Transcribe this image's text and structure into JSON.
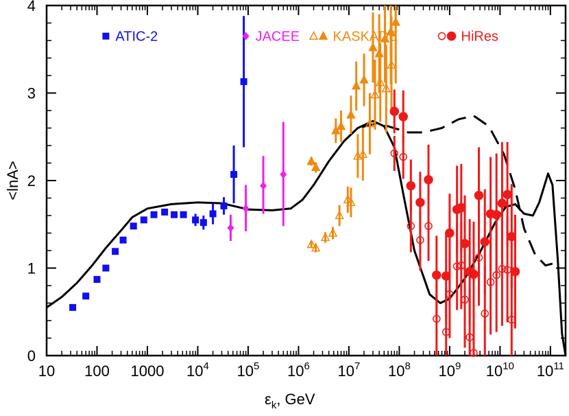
{
  "chart_data": {
    "type": "scatter",
    "x_scale": "log",
    "xlim": [
      10,
      200000000000
    ],
    "ylim": [
      0,
      4
    ],
    "grid": false,
    "xlabel_main": "ε",
    "xlabel_sub": "k",
    "xlabel_rest": ", GeV",
    "ylabel": "<lnA>",
    "x_ticks": [
      {
        "value": 10,
        "base": "10",
        "exp": ""
      },
      {
        "value": 100,
        "base": "100",
        "exp": ""
      },
      {
        "value": 1000,
        "base": "1000",
        "exp": ""
      },
      {
        "value": 10000,
        "base": "10",
        "exp": "4"
      },
      {
        "value": 100000,
        "base": "10",
        "exp": "5"
      },
      {
        "value": 1000000,
        "base": "10",
        "exp": "6"
      },
      {
        "value": 10000000,
        "base": "10",
        "exp": "7"
      },
      {
        "value": 100000000,
        "base": "10",
        "exp": "8"
      },
      {
        "value": 1000000000,
        "base": "10",
        "exp": "9"
      },
      {
        "value": 10000000000,
        "base": "10",
        "exp": "10"
      },
      {
        "value": 100000000000,
        "base": "10",
        "exp": "11"
      }
    ],
    "y_ticks": [
      {
        "value": 0,
        "label": "0"
      },
      {
        "value": 1,
        "label": "1"
      },
      {
        "value": 2,
        "label": "2"
      },
      {
        "value": 3,
        "label": "3"
      },
      {
        "value": 4,
        "label": "4"
      }
    ],
    "legend_placement": "top",
    "series": [
      {
        "name": "ATIC-2",
        "color": "#1010ee",
        "marker": "square-filled",
        "points": [
          [
            33,
            0.55,
            0,
            0
          ],
          [
            60,
            0.68,
            0,
            0
          ],
          [
            100,
            0.87,
            0,
            0
          ],
          [
            150,
            1.0,
            0,
            0
          ],
          [
            230,
            1.19,
            0,
            0
          ],
          [
            330,
            1.32,
            0,
            0
          ],
          [
            530,
            1.48,
            0,
            0
          ],
          [
            850,
            1.55,
            0,
            0
          ],
          [
            1350,
            1.61,
            0,
            0
          ],
          [
            2200,
            1.64,
            0,
            0
          ],
          [
            3400,
            1.61,
            0,
            0
          ],
          [
            5200,
            1.61,
            0,
            0
          ],
          [
            9000,
            1.55,
            0.07,
            0.07
          ],
          [
            13000,
            1.52,
            0.08,
            0.08
          ],
          [
            20000,
            1.62,
            0.12,
            0.12
          ],
          [
            33000,
            1.71,
            0.1,
            0.1
          ],
          [
            52000,
            2.07,
            0.33,
            0.33
          ],
          [
            82000,
            3.13,
            0.75,
            0.75
          ]
        ]
      },
      {
        "name": "JACEE",
        "color": "#ee20ee",
        "marker": "diamond-filled",
        "points": [
          [
            45000,
            1.46,
            0.15,
            0.15
          ],
          [
            90000,
            1.68,
            0.27,
            0.26
          ],
          [
            200000,
            1.94,
            0.34,
            0.32
          ],
          [
            500000,
            2.07,
            0.6,
            0.59
          ]
        ]
      },
      {
        "name": "KASKADE",
        "color": "#ee8a10",
        "marker": "triangle-filled",
        "points": [
          [
            1800000,
            2.22,
            0.05,
            0.05
          ],
          [
            2200000,
            2.15,
            0.06,
            0.06
          ],
          [
            5500000,
            2.57,
            0.14,
            0.14
          ],
          [
            7000000,
            2.62,
            0.18,
            0.18
          ],
          [
            11000000,
            2.75,
            0.22,
            0.22
          ],
          [
            14000000,
            3.08,
            0.28,
            0.28
          ],
          [
            20000000,
            3.15,
            0.3,
            0.3
          ],
          [
            30000000,
            3.52,
            0.4,
            0.4
          ],
          [
            40000000,
            3.45,
            0.45,
            0.45
          ],
          [
            52000000,
            3.62,
            0.5,
            0.5
          ],
          [
            68000000,
            3.7,
            0.6,
            0.6
          ],
          [
            85000000,
            3.81,
            0.7,
            0.7
          ]
        ]
      },
      {
        "name": "KASKADE",
        "color": "#ee8a10",
        "marker": "triangle-open",
        "points": [
          [
            1800000,
            1.27,
            0.04,
            0.04
          ],
          [
            2200000,
            1.23,
            0.05,
            0.05
          ],
          [
            3400000,
            1.35,
            0.06,
            0.06
          ],
          [
            4800000,
            1.4,
            0.07,
            0.07
          ],
          [
            6500000,
            1.6,
            0.12,
            0.12
          ],
          [
            9500000,
            1.78,
            0.15,
            0.15
          ],
          [
            11000000,
            1.75,
            0.17,
            0.17
          ],
          [
            15000000,
            2.28,
            0.25,
            0.25
          ],
          [
            19000000,
            2.3,
            0.3,
            0.3
          ],
          [
            26000000,
            2.65,
            0.35,
            0.35
          ],
          [
            33000000,
            2.98,
            0.4,
            0.4
          ],
          [
            42000000,
            3.12,
            0.45,
            0.45
          ],
          [
            55000000,
            3.05,
            0.5,
            0.5
          ],
          [
            70000000,
            3.32,
            0.55,
            0.55
          ]
        ]
      },
      {
        "name": "HiRes",
        "color": "#ee1a1a",
        "marker": "circle-filled",
        "points": [
          [
            80000000,
            2.79,
            0.25,
            0.25
          ],
          [
            120000000,
            2.73,
            0.3,
            0.3
          ],
          [
            170000000,
            1.94,
            0.3,
            0.3
          ],
          [
            260000000,
            1.75,
            0.35,
            0.35
          ],
          [
            380000000,
            2.01,
            0.4,
            0.4
          ],
          [
            550000000,
            0.92,
            0.45,
            0.45
          ],
          [
            850000000,
            0.91,
            0.5,
            0.5
          ],
          [
            1000000000,
            1.4,
            0.45,
            0.45
          ],
          [
            1400000000,
            1.67,
            0.5,
            0.5
          ],
          [
            1700000000,
            1.69,
            0.5,
            0.5
          ],
          [
            2000000000,
            1.28,
            0.55,
            0.55
          ],
          [
            2500000000,
            0.96,
            0.6,
            0.6
          ],
          [
            3000000000,
            0.93,
            0.6,
            0.6
          ],
          [
            3800000000,
            1.83,
            0.55,
            0.55
          ],
          [
            5000000000,
            1.3,
            0.6,
            0.6
          ],
          [
            6500000000,
            1.62,
            0.65,
            0.65
          ],
          [
            8500000000,
            1.61,
            0.7,
            0.7
          ],
          [
            11000000000,
            1.74,
            0.7,
            0.7
          ],
          [
            14000000000,
            1.84,
            0.6,
            0.6
          ],
          [
            17000000000,
            1.36,
            0.6,
            0.6
          ],
          [
            20000000000,
            0.96,
            0.65,
            0.65
          ]
        ]
      },
      {
        "name": "HiRes",
        "color": "#ee1a1a",
        "marker": "circle-open",
        "points": [
          [
            80000000,
            2.31,
            0.2,
            0.2
          ],
          [
            120000000,
            2.27,
            0.25,
            0.25
          ],
          [
            170000000,
            1.48,
            0.3,
            0.3
          ],
          [
            260000000,
            1.32,
            0.35,
            0.35
          ],
          [
            380000000,
            1.48,
            0.4,
            0.4
          ],
          [
            550000000,
            0.42,
            0.45,
            0.45
          ],
          [
            850000000,
            0.27,
            0.5,
            0.5
          ],
          [
            1000000000,
            0.7,
            0.5,
            0.5
          ],
          [
            1400000000,
            1.02,
            0.5,
            0.5
          ],
          [
            1700000000,
            1.03,
            0.5,
            0.5
          ],
          [
            2000000000,
            0.64,
            0.55,
            0.55
          ],
          [
            2500000000,
            0.21,
            0.55,
            0.55
          ],
          [
            3000000000,
            0.03,
            0.55,
            0.55
          ],
          [
            3800000000,
            1.12,
            0.55,
            0.55
          ],
          [
            5000000000,
            0.48,
            0.55,
            0.55
          ],
          [
            6500000000,
            0.84,
            0.6,
            0.6
          ],
          [
            8500000000,
            0.92,
            0.65,
            0.65
          ],
          [
            11000000000,
            0.99,
            0.65,
            0.65
          ],
          [
            14000000000,
            0.98,
            0.6,
            0.6
          ],
          [
            17000000000,
            0.41,
            0.6,
            0.6
          ]
        ]
      }
    ],
    "curves": [
      {
        "style": "solid",
        "color": "#000000",
        "points": [
          [
            10,
            0.55
          ],
          [
            20,
            0.67
          ],
          [
            40,
            0.83
          ],
          [
            80,
            1.03
          ],
          [
            150,
            1.23
          ],
          [
            300,
            1.43
          ],
          [
            500,
            1.58
          ],
          [
            1000,
            1.68
          ],
          [
            3000,
            1.73
          ],
          [
            10000,
            1.75
          ],
          [
            30000,
            1.74
          ],
          [
            100000,
            1.67
          ],
          [
            300000,
            1.66
          ],
          [
            700000,
            1.68
          ],
          [
            1200000,
            1.78
          ],
          [
            2000000,
            1.95
          ],
          [
            4000000,
            2.22
          ],
          [
            8000000,
            2.45
          ],
          [
            15000000,
            2.6
          ],
          [
            30000000,
            2.68
          ],
          [
            50000000,
            2.62
          ],
          [
            80000000,
            2.38
          ],
          [
            120000000,
            1.85
          ],
          [
            200000000,
            1.2
          ],
          [
            400000000,
            0.7
          ],
          [
            650000000,
            0.6
          ],
          [
            1000000000,
            0.65
          ],
          [
            2000000000,
            0.88
          ],
          [
            4000000000,
            1.18
          ],
          [
            8000000000,
            1.52
          ],
          [
            13000000000,
            1.7
          ],
          [
            20000000000,
            1.73
          ],
          [
            30000000000,
            1.62
          ],
          [
            45000000000,
            1.6
          ],
          [
            60000000000,
            1.75
          ],
          [
            90000000000,
            2.08
          ],
          [
            110000000000,
            1.95
          ],
          [
            140000000000,
            1.1
          ],
          [
            170000000000,
            0.25
          ],
          [
            200000000000,
            0.0
          ]
        ]
      },
      {
        "style": "dashed",
        "color": "#000000",
        "points": [
          [
            8000000,
            2.45
          ],
          [
            15000000,
            2.6
          ],
          [
            35000000,
            2.65
          ],
          [
            60000000,
            2.62
          ],
          [
            150000000,
            2.55
          ],
          [
            300000000,
            2.55
          ],
          [
            700000000,
            2.6
          ],
          [
            1500000000,
            2.7
          ],
          [
            3000000000,
            2.74
          ],
          [
            6000000000,
            2.62
          ],
          [
            12000000000,
            2.3
          ],
          [
            20000000000,
            1.9
          ],
          [
            30000000000,
            1.45
          ],
          [
            50000000000,
            1.15
          ],
          [
            80000000000,
            1.03
          ],
          [
            110000000000,
            1.05
          ]
        ]
      }
    ],
    "legend": [
      {
        "label": "ATIC-2",
        "color": "#1010ee",
        "markers": [
          "square-filled"
        ]
      },
      {
        "label": "JACEE",
        "color": "#ee20ee",
        "markers": [
          "diamond-filled"
        ]
      },
      {
        "label": "KASKADE",
        "color": "#ee8a10",
        "markers": [
          "triangle-open",
          "triangle-filled"
        ]
      },
      {
        "label": "HiRes",
        "color": "#ee1a1a",
        "markers": [
          "circle-open",
          "circle-filled"
        ]
      }
    ]
  }
}
